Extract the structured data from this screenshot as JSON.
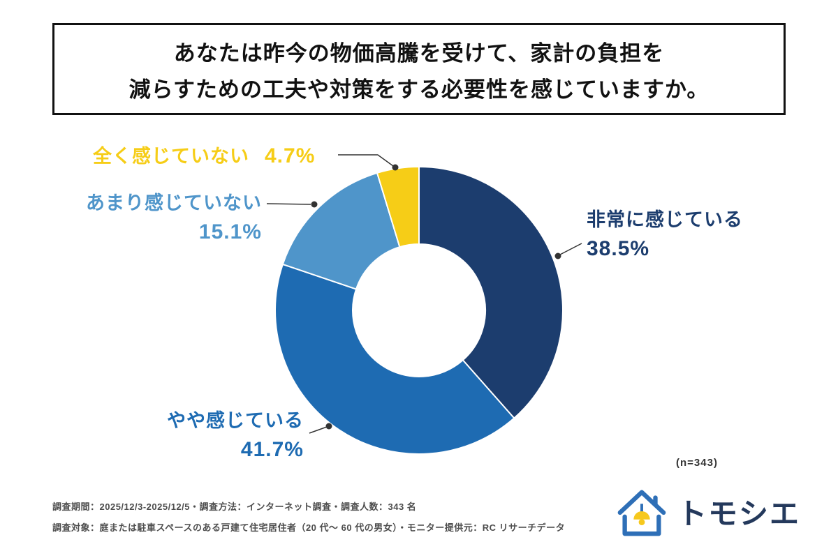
{
  "title": {
    "line1": "あなたは昨今の物価高騰を受けて、家計の負担を",
    "line2": "減らすための工夫や対策をする必要性を感じていますか。"
  },
  "chart_data": {
    "type": "pie",
    "donut": true,
    "start": "top",
    "direction": "clockwise",
    "sample_note": "(n=343)",
    "segments": [
      {
        "label": "非常に感じている",
        "value": 38.5,
        "pct_label": "38.5%",
        "color": "#1c3d6e"
      },
      {
        "label": "やや感じている",
        "value": 41.7,
        "pct_label": "41.7%",
        "color": "#1e6bb2"
      },
      {
        "label": "あまり感じていない",
        "value": 15.1,
        "pct_label": "15.1%",
        "color": "#4f95ca"
      },
      {
        "label": "全く感じていない",
        "value": 4.7,
        "pct_label": "4.7%",
        "color": "#f6cd17"
      }
    ]
  },
  "footer": {
    "line1": "調査期間：2025/12/3-2025/12/5・調査方法：インターネット調査・調査人数：343 名",
    "line2": "調査対象：庭または駐車スペースのある戸建て住宅居住者（20 代～ 60 代の男女）・モニター提供元：RC リサーチデータ",
    "brand": "トモシエ",
    "logo_icon": "house-lamp-icon"
  }
}
